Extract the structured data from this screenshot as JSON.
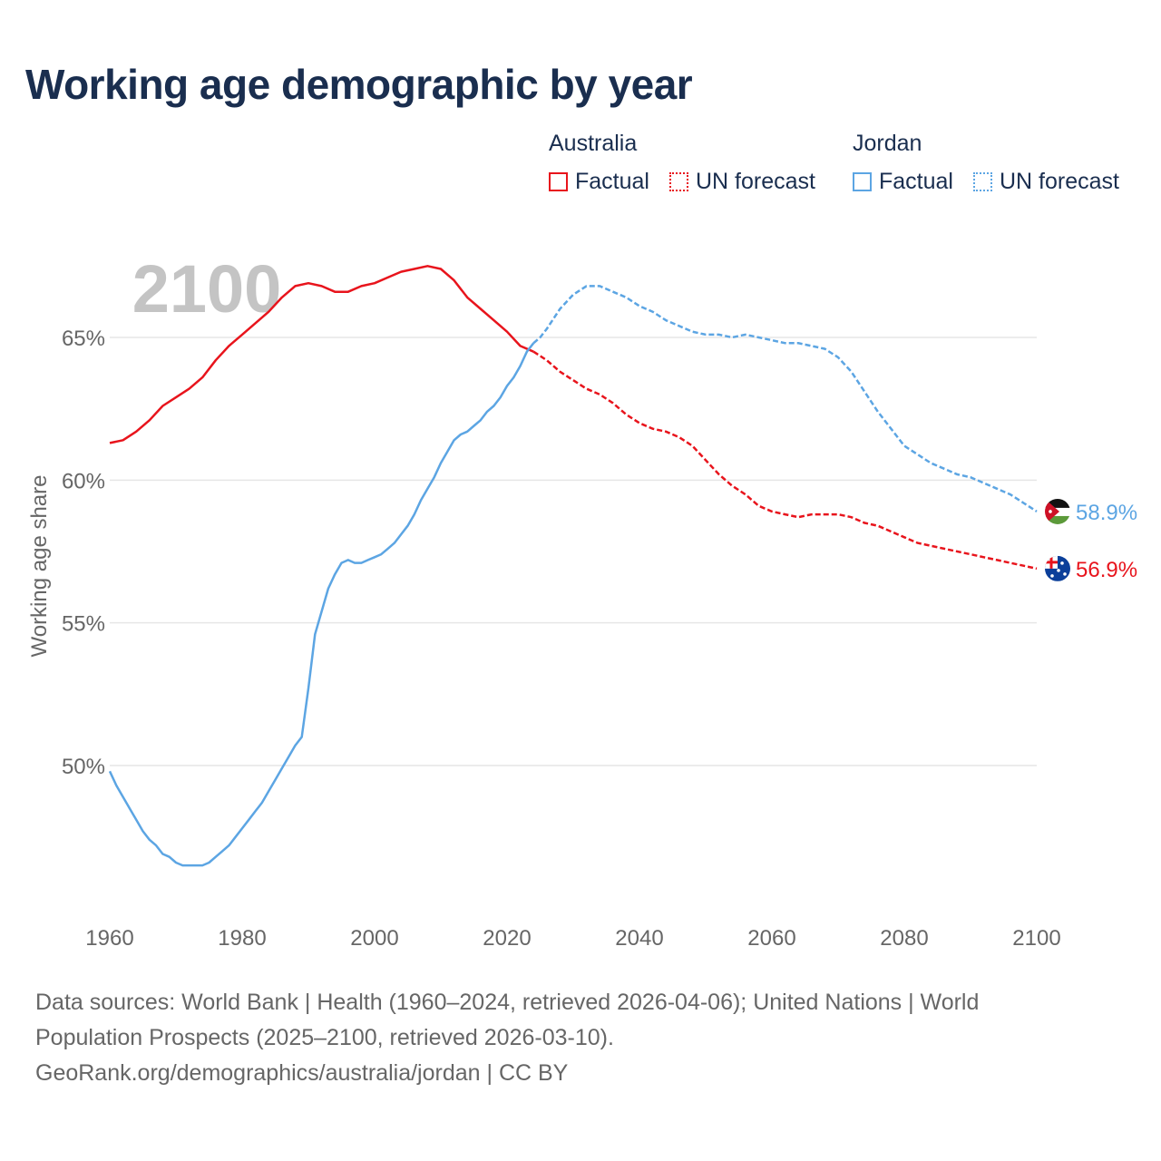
{
  "title": "Working age demographic by year",
  "legend": {
    "groups": [
      {
        "name": "Australia",
        "color": "#e8141c",
        "factual_label": "Factual",
        "forecast_label": "UN forecast"
      },
      {
        "name": "Jordan",
        "color": "#5ca5e3",
        "factual_label": "Factual",
        "forecast_label": "UN forecast"
      }
    ]
  },
  "colors": {
    "australia": "#e8141c",
    "jordan": "#5ca5e3",
    "axis_text": "#666666",
    "grid": "#e6e6e6",
    "year_watermark": "#c4c4c4"
  },
  "sources": {
    "line1": "Data sources: World Bank | Health (1960–2024, retrieved 2026-04-06); United Nations | World",
    "line2": "Population Prospects (2025–2100, retrieved 2026-03-10).",
    "line3": "GeoRank.org/demographics/australia/jordan | CC BY"
  },
  "chart_data": {
    "type": "line",
    "title": "Working age demographic by year",
    "xlabel": "",
    "ylabel": "Working age share",
    "xlim": [
      1960,
      2100
    ],
    "ylim": [
      45,
      69
    ],
    "x_ticks": [
      1960,
      1980,
      2000,
      2020,
      2040,
      2060,
      2080,
      2100
    ],
    "y_ticks": [
      50,
      55,
      60,
      65
    ],
    "y_tick_labels": [
      "50%",
      "55%",
      "60%",
      "65%"
    ],
    "grid": true,
    "current_year_label": "2100",
    "factual_range": [
      1960,
      2024
    ],
    "forecast_range": [
      2025,
      2100
    ],
    "series": [
      {
        "name": "Australia",
        "end_label": "56.9%",
        "points": [
          [
            1960,
            61.3
          ],
          [
            1962,
            61.4
          ],
          [
            1964,
            61.7
          ],
          [
            1966,
            62.1
          ],
          [
            1968,
            62.6
          ],
          [
            1970,
            62.9
          ],
          [
            1972,
            63.2
          ],
          [
            1974,
            63.6
          ],
          [
            1976,
            64.2
          ],
          [
            1978,
            64.7
          ],
          [
            1980,
            65.1
          ],
          [
            1982,
            65.5
          ],
          [
            1984,
            65.9
          ],
          [
            1986,
            66.4
          ],
          [
            1988,
            66.8
          ],
          [
            1990,
            66.9
          ],
          [
            1992,
            66.8
          ],
          [
            1994,
            66.6
          ],
          [
            1996,
            66.6
          ],
          [
            1998,
            66.8
          ],
          [
            2000,
            66.9
          ],
          [
            2002,
            67.1
          ],
          [
            2004,
            67.3
          ],
          [
            2006,
            67.4
          ],
          [
            2008,
            67.5
          ],
          [
            2010,
            67.4
          ],
          [
            2012,
            67.0
          ],
          [
            2014,
            66.4
          ],
          [
            2016,
            66.0
          ],
          [
            2018,
            65.6
          ],
          [
            2020,
            65.2
          ],
          [
            2022,
            64.7
          ],
          [
            2024,
            64.5
          ],
          [
            2026,
            64.2
          ],
          [
            2028,
            63.8
          ],
          [
            2030,
            63.5
          ],
          [
            2032,
            63.2
          ],
          [
            2034,
            63.0
          ],
          [
            2036,
            62.7
          ],
          [
            2038,
            62.3
          ],
          [
            2040,
            62.0
          ],
          [
            2042,
            61.8
          ],
          [
            2044,
            61.7
          ],
          [
            2046,
            61.5
          ],
          [
            2048,
            61.2
          ],
          [
            2050,
            60.7
          ],
          [
            2052,
            60.2
          ],
          [
            2054,
            59.8
          ],
          [
            2056,
            59.5
          ],
          [
            2058,
            59.1
          ],
          [
            2060,
            58.9
          ],
          [
            2062,
            58.8
          ],
          [
            2064,
            58.7
          ],
          [
            2066,
            58.8
          ],
          [
            2068,
            58.8
          ],
          [
            2070,
            58.8
          ],
          [
            2072,
            58.7
          ],
          [
            2074,
            58.5
          ],
          [
            2076,
            58.4
          ],
          [
            2078,
            58.2
          ],
          [
            2080,
            58.0
          ],
          [
            2082,
            57.8
          ],
          [
            2084,
            57.7
          ],
          [
            2086,
            57.6
          ],
          [
            2088,
            57.5
          ],
          [
            2090,
            57.4
          ],
          [
            2092,
            57.3
          ],
          [
            2094,
            57.2
          ],
          [
            2096,
            57.1
          ],
          [
            2098,
            57.0
          ],
          [
            2100,
            56.9
          ]
        ]
      },
      {
        "name": "Jordan",
        "end_label": "58.9%",
        "points": [
          [
            1960,
            49.8
          ],
          [
            1961,
            49.3
          ],
          [
            1962,
            48.9
          ],
          [
            1963,
            48.5
          ],
          [
            1964,
            48.1
          ],
          [
            1965,
            47.7
          ],
          [
            1966,
            47.4
          ],
          [
            1967,
            47.2
          ],
          [
            1968,
            46.9
          ],
          [
            1969,
            46.8
          ],
          [
            1970,
            46.6
          ],
          [
            1971,
            46.5
          ],
          [
            1972,
            46.5
          ],
          [
            1973,
            46.5
          ],
          [
            1974,
            46.5
          ],
          [
            1975,
            46.6
          ],
          [
            1976,
            46.8
          ],
          [
            1977,
            47.0
          ],
          [
            1978,
            47.2
          ],
          [
            1979,
            47.5
          ],
          [
            1980,
            47.8
          ],
          [
            1981,
            48.1
          ],
          [
            1982,
            48.4
          ],
          [
            1983,
            48.7
          ],
          [
            1984,
            49.1
          ],
          [
            1985,
            49.5
          ],
          [
            1986,
            49.9
          ],
          [
            1987,
            50.3
          ],
          [
            1988,
            50.7
          ],
          [
            1989,
            51.0
          ],
          [
            1990,
            52.7
          ],
          [
            1991,
            54.6
          ],
          [
            1992,
            55.4
          ],
          [
            1993,
            56.2
          ],
          [
            1994,
            56.7
          ],
          [
            1995,
            57.1
          ],
          [
            1996,
            57.2
          ],
          [
            1997,
            57.1
          ],
          [
            1998,
            57.1
          ],
          [
            1999,
            57.2
          ],
          [
            2000,
            57.3
          ],
          [
            2001,
            57.4
          ],
          [
            2002,
            57.6
          ],
          [
            2003,
            57.8
          ],
          [
            2004,
            58.1
          ],
          [
            2005,
            58.4
          ],
          [
            2006,
            58.8
          ],
          [
            2007,
            59.3
          ],
          [
            2008,
            59.7
          ],
          [
            2009,
            60.1
          ],
          [
            2010,
            60.6
          ],
          [
            2011,
            61.0
          ],
          [
            2012,
            61.4
          ],
          [
            2013,
            61.6
          ],
          [
            2014,
            61.7
          ],
          [
            2015,
            61.9
          ],
          [
            2016,
            62.1
          ],
          [
            2017,
            62.4
          ],
          [
            2018,
            62.6
          ],
          [
            2019,
            62.9
          ],
          [
            2020,
            63.3
          ],
          [
            2021,
            63.6
          ],
          [
            2022,
            64.0
          ],
          [
            2023,
            64.5
          ],
          [
            2024,
            64.8
          ],
          [
            2025,
            65.0
          ],
          [
            2026,
            65.3
          ],
          [
            2028,
            66.0
          ],
          [
            2030,
            66.5
          ],
          [
            2032,
            66.8
          ],
          [
            2034,
            66.8
          ],
          [
            2036,
            66.6
          ],
          [
            2038,
            66.4
          ],
          [
            2040,
            66.1
          ],
          [
            2042,
            65.9
          ],
          [
            2044,
            65.6
          ],
          [
            2046,
            65.4
          ],
          [
            2048,
            65.2
          ],
          [
            2050,
            65.1
          ],
          [
            2052,
            65.1
          ],
          [
            2054,
            65.0
          ],
          [
            2056,
            65.1
          ],
          [
            2058,
            65.0
          ],
          [
            2060,
            64.9
          ],
          [
            2062,
            64.8
          ],
          [
            2064,
            64.8
          ],
          [
            2066,
            64.7
          ],
          [
            2068,
            64.6
          ],
          [
            2070,
            64.3
          ],
          [
            2072,
            63.8
          ],
          [
            2074,
            63.1
          ],
          [
            2076,
            62.4
          ],
          [
            2078,
            61.8
          ],
          [
            2080,
            61.2
          ],
          [
            2082,
            60.9
          ],
          [
            2084,
            60.6
          ],
          [
            2086,
            60.4
          ],
          [
            2088,
            60.2
          ],
          [
            2090,
            60.1
          ],
          [
            2092,
            59.9
          ],
          [
            2094,
            59.7
          ],
          [
            2096,
            59.5
          ],
          [
            2098,
            59.2
          ],
          [
            2100,
            58.9
          ]
        ]
      }
    ]
  }
}
